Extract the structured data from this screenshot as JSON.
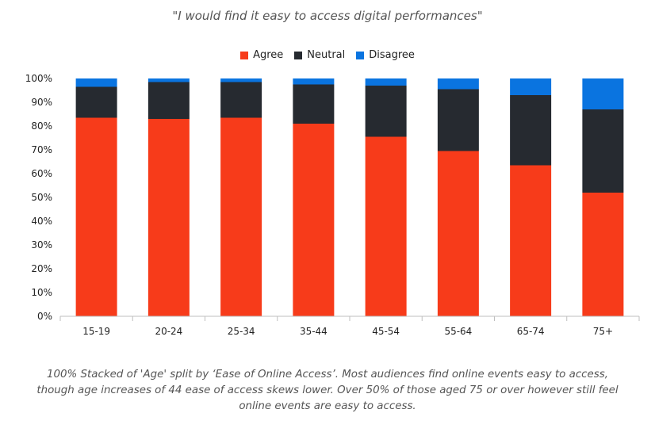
{
  "chart_data": {
    "type": "bar",
    "stacked": true,
    "title": "\"I would find it easy to access digital performances\"",
    "categories": [
      "15-19",
      "20-24",
      "25-34",
      "35-44",
      "45-54",
      "55-64",
      "65-74",
      "75+"
    ],
    "series": [
      {
        "name": "Agree",
        "color": "#f73b1a",
        "values": [
          83.5,
          83,
          83.5,
          81,
          75.5,
          69.5,
          63.5,
          52
        ]
      },
      {
        "name": "Neutral",
        "color": "#262a30",
        "values": [
          13,
          15.5,
          15,
          16.5,
          21.5,
          26,
          29.5,
          35
        ]
      },
      {
        "name": "Disagree",
        "color": "#0a74e0",
        "values": [
          3.5,
          1.5,
          1.5,
          2.5,
          3,
          4.5,
          7,
          13
        ]
      }
    ],
    "yticks": [
      "0%",
      "10%",
      "20%",
      "30%",
      "40%",
      "50%",
      "60%",
      "70%",
      "80%",
      "90%",
      "100%"
    ],
    "ylim": [
      0,
      100
    ],
    "legend_position": "top-center",
    "grid": false
  },
  "caption": "100% Stacked of 'Age' split by ‘Ease of Online Access’. Most audiences find online events easy to access, though age increases of 44 ease of access skews lower. Over 50% of those aged 75 or over however still feel online events are easy to access."
}
